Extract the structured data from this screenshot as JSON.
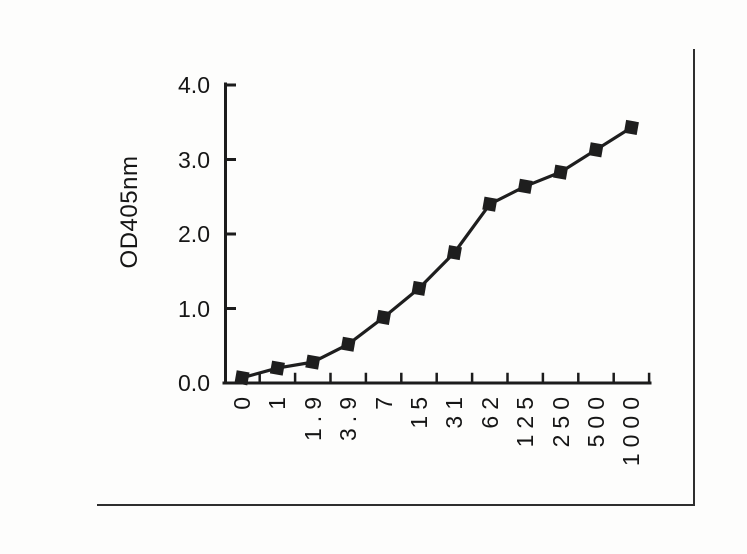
{
  "chart_data": {
    "type": "line",
    "title": "",
    "xlabel": "",
    "ylabel": "OD405nm",
    "categories": [
      "0",
      "1",
      "1.9",
      "3.9",
      "7",
      "15",
      "31",
      "62",
      "125",
      "250",
      "500",
      "1000"
    ],
    "series": [
      {
        "name": "OD405nm",
        "values": [
          0.07,
          0.2,
          0.28,
          0.52,
          0.88,
          1.27,
          1.75,
          2.4,
          2.64,
          2.83,
          3.13,
          3.43
        ]
      }
    ],
    "ylim": [
      0,
      4
    ],
    "yticks": [
      0,
      1,
      2,
      3,
      4
    ],
    "ytick_labels": [
      "0.0",
      "1.0",
      "2.0",
      "3.0",
      "4.0"
    ],
    "xtick_rotation": -90,
    "xtick_position": "between-categories",
    "grid": false,
    "legend": false,
    "marker": "filled-square",
    "line_color": "#1e1e1e",
    "marker_color": "#1e1e1e",
    "axis_color": "#1c1c1c",
    "frame_color": "#2e2e2e",
    "background": "#fdfdfc",
    "frame_sides": "right-bottom"
  }
}
